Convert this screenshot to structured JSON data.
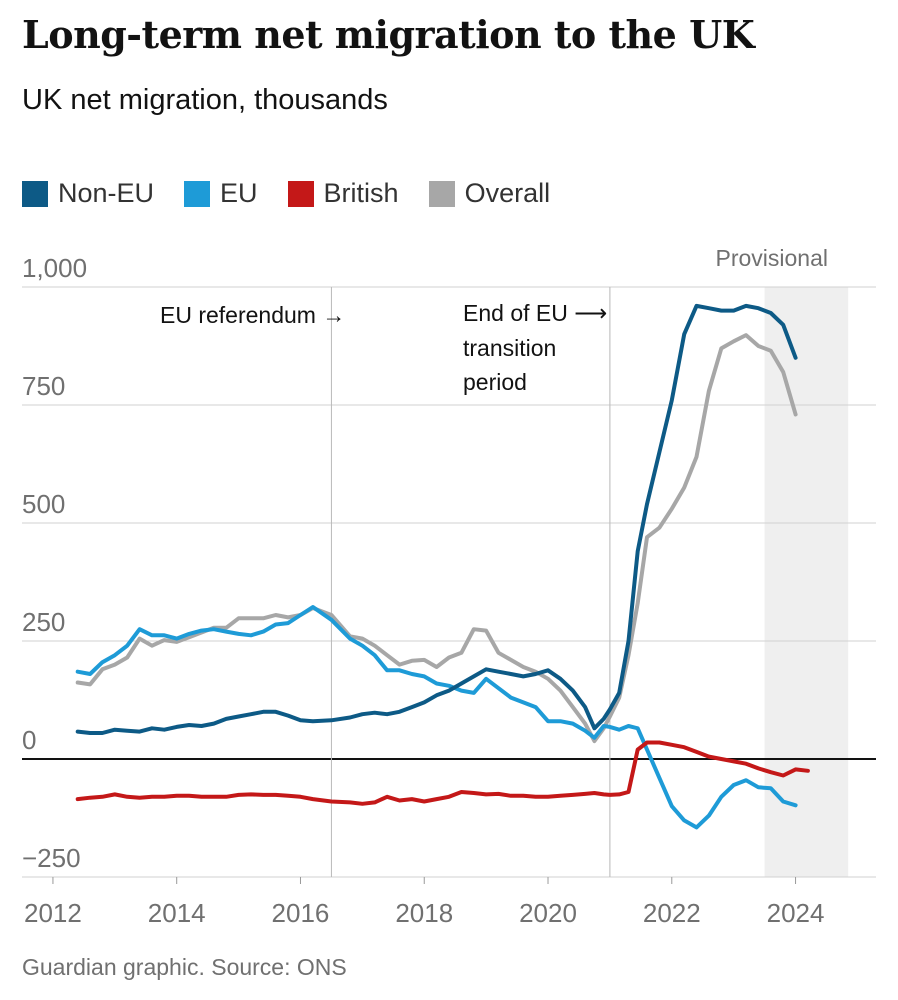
{
  "title": "Long-term net migration to the UK",
  "subtitle": "UK net migration, thousands",
  "source": "Guardian graphic. Source: ONS",
  "colors": {
    "non_eu": "#0d5a86",
    "eu": "#1e9bd7",
    "british": "#c41818",
    "overall": "#a7a7a7",
    "grid": "#d2d2d2",
    "shade": "#efefef"
  },
  "legend": [
    {
      "label": "Non-EU",
      "color": "#0d5a86"
    },
    {
      "label": "EU",
      "color": "#1e9bd7"
    },
    {
      "label": "British",
      "color": "#c41818"
    },
    {
      "label": "Overall",
      "color": "#a7a7a7"
    }
  ],
  "annotations": {
    "referendum": "EU referendum →",
    "transition_1": "End of EU ⟶",
    "transition_2": "transition",
    "transition_3": "period",
    "provisional": "Provisional"
  },
  "chart_data": {
    "type": "line",
    "title": "Long-term net migration to the UK",
    "subtitle": "UK net migration, thousands",
    "xlabel": "",
    "ylabel": "",
    "xlim": [
      2011.5,
      2025.3
    ],
    "ylim": [
      -250,
      1000
    ],
    "yticks": [
      1000,
      750,
      500,
      250,
      0,
      -250
    ],
    "ytick_labels": [
      "1,000",
      "750",
      "500",
      "250",
      "0",
      "−250"
    ],
    "xticks": [
      2012,
      2014,
      2016,
      2018,
      2020,
      2022,
      2024
    ],
    "xtick_labels": [
      "2012",
      "2014",
      "2016",
      "2018",
      "2020",
      "2022",
      "2024"
    ],
    "zero_line": 0,
    "markers": [
      {
        "label": "EU referendum",
        "x": 2016.5
      },
      {
        "label": "End of EU transition period",
        "x": 2021.0
      }
    ],
    "provisional_range": [
      2023.5,
      2024.85
    ],
    "series": [
      {
        "name": "Overall",
        "x": [
          2012.4,
          2012.6,
          2012.8,
          2013.0,
          2013.2,
          2013.4,
          2013.6,
          2013.8,
          2014.0,
          2014.2,
          2014.4,
          2014.6,
          2014.8,
          2015.0,
          2015.2,
          2015.4,
          2015.6,
          2015.8,
          2016.0,
          2016.2,
          2016.5,
          2016.8,
          2017.0,
          2017.2,
          2017.4,
          2017.6,
          2017.8,
          2018.0,
          2018.2,
          2018.4,
          2018.6,
          2018.8,
          2019.0,
          2019.2,
          2019.4,
          2019.6,
          2019.8,
          2020.0,
          2020.2,
          2020.4,
          2020.6,
          2020.75,
          2020.9,
          2021.0,
          2021.15,
          2021.3,
          2021.45,
          2021.6,
          2021.8,
          2022.0,
          2022.2,
          2022.4,
          2022.6,
          2022.8,
          2023.0,
          2023.2,
          2023.4,
          2023.6,
          2023.8,
          2024.0,
          2024.2,
          2024.4
        ],
        "values": [
          162,
          158,
          190,
          200,
          215,
          255,
          240,
          252,
          248,
          258,
          268,
          278,
          278,
          298,
          298,
          298,
          305,
          300,
          305,
          320,
          305,
          260,
          255,
          240,
          220,
          200,
          208,
          210,
          195,
          215,
          225,
          275,
          272,
          225,
          210,
          195,
          185,
          170,
          145,
          110,
          75,
          38,
          65,
          90,
          130,
          220,
          330,
          470,
          490,
          530,
          575,
          640,
          780,
          870,
          885,
          898,
          875,
          865,
          820,
          730,
          null,
          null
        ]
      },
      {
        "name": "EU",
        "x": [
          2012.4,
          2012.6,
          2012.8,
          2013.0,
          2013.2,
          2013.4,
          2013.6,
          2013.8,
          2014.0,
          2014.2,
          2014.4,
          2014.6,
          2014.8,
          2015.0,
          2015.2,
          2015.4,
          2015.6,
          2015.8,
          2016.0,
          2016.2,
          2016.5,
          2016.8,
          2017.0,
          2017.2,
          2017.4,
          2017.6,
          2017.8,
          2018.0,
          2018.2,
          2018.4,
          2018.6,
          2018.8,
          2019.0,
          2019.2,
          2019.4,
          2019.6,
          2019.8,
          2020.0,
          2020.2,
          2020.4,
          2020.6,
          2020.75,
          2020.9,
          2021.0,
          2021.15,
          2021.3,
          2021.45,
          2021.6,
          2021.8,
          2022.0,
          2022.2,
          2022.4,
          2022.6,
          2022.8,
          2023.0,
          2023.2,
          2023.4,
          2023.6,
          2023.8,
          2024.0,
          2024.2,
          2024.4
        ],
        "values": [
          185,
          180,
          205,
          220,
          240,
          275,
          262,
          262,
          255,
          265,
          272,
          275,
          270,
          265,
          262,
          270,
          285,
          288,
          305,
          322,
          295,
          255,
          240,
          220,
          188,
          188,
          180,
          175,
          160,
          155,
          145,
          140,
          170,
          150,
          130,
          120,
          110,
          80,
          80,
          75,
          60,
          45,
          70,
          68,
          62,
          70,
          65,
          20,
          -40,
          -100,
          -130,
          -145,
          -120,
          -80,
          -55,
          -45,
          -60,
          -62,
          -90,
          -98,
          null,
          null
        ]
      },
      {
        "name": "British",
        "x": [
          2012.4,
          2012.6,
          2012.8,
          2013.0,
          2013.2,
          2013.4,
          2013.6,
          2013.8,
          2014.0,
          2014.2,
          2014.4,
          2014.6,
          2014.8,
          2015.0,
          2015.2,
          2015.4,
          2015.6,
          2015.8,
          2016.0,
          2016.2,
          2016.5,
          2016.8,
          2017.0,
          2017.2,
          2017.4,
          2017.6,
          2017.8,
          2018.0,
          2018.2,
          2018.4,
          2018.6,
          2018.8,
          2019.0,
          2019.2,
          2019.4,
          2019.6,
          2019.8,
          2020.0,
          2020.2,
          2020.4,
          2020.6,
          2020.75,
          2020.9,
          2021.0,
          2021.15,
          2021.3,
          2021.45,
          2021.6,
          2021.8,
          2022.0,
          2022.2,
          2022.4,
          2022.6,
          2022.8,
          2023.0,
          2023.2,
          2023.4,
          2023.6,
          2023.8,
          2024.0,
          2024.2,
          2024.4
        ],
        "values": [
          -85,
          -82,
          -80,
          -75,
          -80,
          -82,
          -80,
          -80,
          -78,
          -78,
          -80,
          -80,
          -80,
          -76,
          -75,
          -76,
          -76,
          -78,
          -80,
          -85,
          -90,
          -92,
          -95,
          -92,
          -80,
          -88,
          -85,
          -90,
          -85,
          -80,
          -70,
          -72,
          -75,
          -74,
          -78,
          -78,
          -80,
          -80,
          -78,
          -76,
          -74,
          -72,
          -75,
          -76,
          -75,
          -70,
          20,
          35,
          35,
          30,
          25,
          15,
          5,
          0,
          -5,
          -10,
          -20,
          -28,
          -35,
          -22,
          -25,
          null
        ]
      },
      {
        "name": "Non-EU",
        "x": [
          2012.4,
          2012.6,
          2012.8,
          2013.0,
          2013.2,
          2013.4,
          2013.6,
          2013.8,
          2014.0,
          2014.2,
          2014.4,
          2014.6,
          2014.8,
          2015.0,
          2015.2,
          2015.4,
          2015.6,
          2015.8,
          2016.0,
          2016.2,
          2016.5,
          2016.8,
          2017.0,
          2017.2,
          2017.4,
          2017.6,
          2017.8,
          2018.0,
          2018.2,
          2018.4,
          2018.6,
          2018.8,
          2019.0,
          2019.2,
          2019.4,
          2019.6,
          2019.8,
          2020.0,
          2020.2,
          2020.4,
          2020.6,
          2020.75,
          2020.9,
          2021.0,
          2021.15,
          2021.3,
          2021.45,
          2021.6,
          2021.8,
          2022.0,
          2022.2,
          2022.4,
          2022.6,
          2022.8,
          2023.0,
          2023.2,
          2023.4,
          2023.6,
          2023.8,
          2024.0,
          2024.2,
          2024.4
        ],
        "values": [
          58,
          55,
          55,
          62,
          60,
          58,
          65,
          62,
          68,
          72,
          70,
          75,
          85,
          90,
          95,
          100,
          100,
          92,
          82,
          80,
          82,
          88,
          95,
          98,
          95,
          100,
          110,
          120,
          135,
          145,
          160,
          175,
          190,
          185,
          180,
          175,
          180,
          188,
          170,
          145,
          110,
          65,
          85,
          105,
          140,
          250,
          440,
          540,
          650,
          760,
          900,
          960,
          955,
          950,
          950,
          960,
          955,
          945,
          920,
          850,
          null,
          null
        ]
      }
    ]
  }
}
